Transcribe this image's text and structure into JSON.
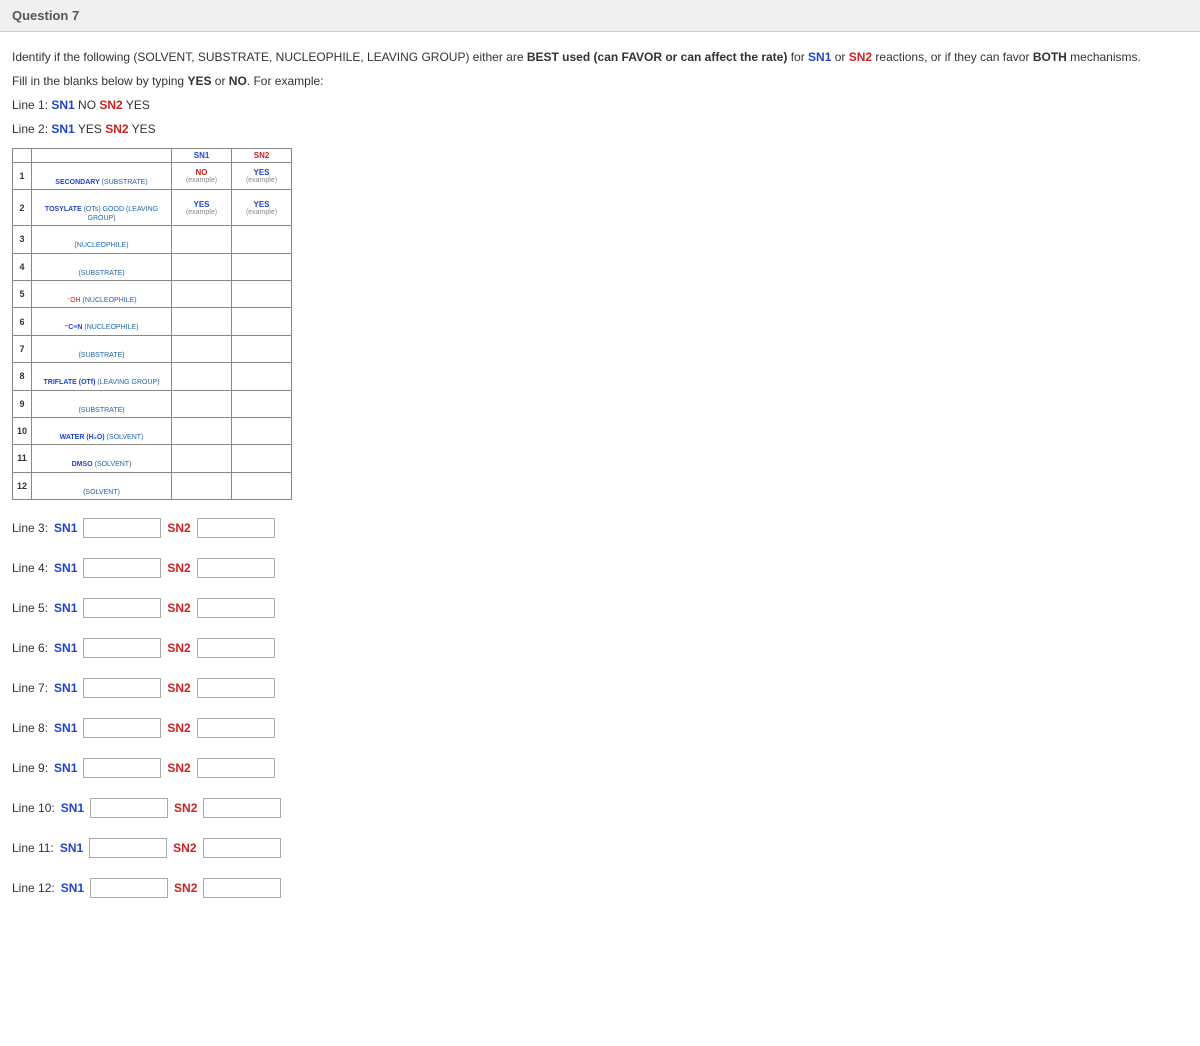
{
  "header": {
    "title": "Question 7"
  },
  "instructions": {
    "p1_prefix": "Identify if the following (SOLVENT, SUBSTRATE, NUCLEOPHILE, LEAVING GROUP) either are ",
    "p1_best": "BEST used (can FAVOR or can affect the rate)",
    "p1_for": " for ",
    "p1_sn1": "SN1",
    "p1_or": " or ",
    "p1_sn2": "SN2",
    "p1_suffix": " reactions, or if they can favor ",
    "p1_both": "BOTH",
    "p1_tail": " mechanisms.",
    "p2_prefix": "Fill in the blanks below by typing ",
    "p2_yes": "YES",
    "p2_mid": " or ",
    "p2_no": "NO",
    "p2_suffix": ". For example:",
    "ex1_label": "Line 1: ",
    "ex1_sn1": "SN1",
    "ex1_v1": " NO ",
    "ex1_sn2": "SN2",
    "ex1_v2": " YES",
    "ex2_label": "Line 2: ",
    "ex2_sn1": "SN1",
    "ex2_v1": " YES ",
    "ex2_sn2": "SN2",
    "ex2_v2": " YES"
  },
  "table": {
    "head_sn1": "SN1",
    "head_sn2": "SN2",
    "example_label": "(example)",
    "rows": [
      {
        "n": "1",
        "title": "SECONDARY",
        "cat": "(SUBSTRATE)",
        "sn1": "NO",
        "sn2": "YES",
        "show_ex": true
      },
      {
        "n": "2",
        "title": "TOSYLATE",
        "cat": "(OTs) GOOD (LEAVING GROUP)",
        "sn1": "YES",
        "sn2": "YES",
        "show_ex": true
      },
      {
        "n": "3",
        "title": "",
        "cat": "(NUCLEOPHILE)",
        "sn1": "",
        "sn2": "",
        "show_ex": false
      },
      {
        "n": "4",
        "title": "",
        "cat": "(SUBSTRATE)",
        "sn1": "",
        "sn2": "",
        "show_ex": false
      },
      {
        "n": "5",
        "title": "⁻OH",
        "cat": "(NUCLEOPHILE)",
        "sn1": "",
        "sn2": "",
        "show_ex": false,
        "red_title": true
      },
      {
        "n": "6",
        "title": "⁻C≡N",
        "cat": "(NUCLEOPHILE)",
        "sn1": "",
        "sn2": "",
        "show_ex": false
      },
      {
        "n": "7",
        "title": "",
        "cat": "(SUBSTRATE)",
        "sn1": "",
        "sn2": "",
        "show_ex": false
      },
      {
        "n": "8",
        "title": "TRIFLATE (OTf)",
        "cat": "(LEAVING GROUP)",
        "sn1": "",
        "sn2": "",
        "show_ex": false
      },
      {
        "n": "9",
        "title": "",
        "cat": "(SUBSTRATE)",
        "sn1": "",
        "sn2": "",
        "show_ex": false
      },
      {
        "n": "10",
        "title": "WATER (H₂O)",
        "cat": "(SOLVENT)",
        "sn1": "",
        "sn2": "",
        "show_ex": false
      },
      {
        "n": "11",
        "title": "DMSO",
        "cat": "(SOLVENT)",
        "sn1": "",
        "sn2": "",
        "show_ex": false
      },
      {
        "n": "12",
        "title": "",
        "cat": "(SOLVENT)",
        "sn1": "",
        "sn2": "",
        "show_ex": false
      }
    ]
  },
  "answers": {
    "lines": [
      {
        "label": "Line 3:",
        "sn1": "SN1",
        "sn2": "SN2"
      },
      {
        "label": "Line 4:",
        "sn1": "SN1",
        "sn2": "SN2"
      },
      {
        "label": "Line 5:",
        "sn1": "SN1",
        "sn2": "SN2"
      },
      {
        "label": "Line 6:",
        "sn1": "SN1",
        "sn2": "SN2"
      },
      {
        "label": "Line 7:",
        "sn1": "SN1",
        "sn2": "SN2"
      },
      {
        "label": "Line 8:",
        "sn1": "SN1",
        "sn2": "SN2"
      },
      {
        "label": "Line 9:",
        "sn1": "SN1",
        "sn2": "SN2"
      },
      {
        "label": "Line 10:",
        "sn1": "SN1",
        "sn2": "SN2"
      },
      {
        "label": "Line 11:",
        "sn1": "SN1",
        "sn2": "SN2"
      },
      {
        "label": "Line 12:",
        "sn1": "SN1",
        "sn2": "SN2"
      }
    ]
  },
  "colors": {
    "sn1": "#2244cc",
    "sn2": "#cc2222",
    "header_bg": "#f0f0f0",
    "border": "#888"
  }
}
